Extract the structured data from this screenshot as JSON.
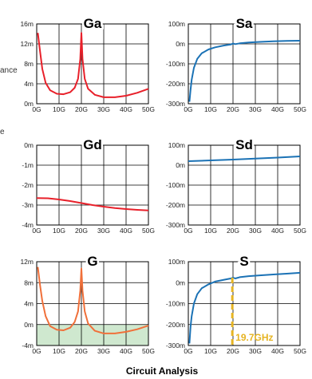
{
  "caption": "Circuit Analysis",
  "side_labels": [
    "ance",
    "e"
  ],
  "colors": {
    "red": "#e8202a",
    "blue": "#1b72b5",
    "orange": "#f0703a",
    "green_band": "#cfe8cf",
    "marker": "#e6b422"
  },
  "chart_data": [
    {
      "id": "Ga",
      "type": "line",
      "title": "Ga",
      "color": "red",
      "xlim": [
        0,
        50
      ],
      "ylim": [
        0,
        16
      ],
      "x_ticks": [
        "0G",
        "10G",
        "20G",
        "30G",
        "40G",
        "50G"
      ],
      "y_ticks": [
        {
          "v": 0,
          "label": "0m"
        },
        {
          "v": 4,
          "label": "4m"
        },
        {
          "v": 8,
          "label": "8m"
        },
        {
          "v": 12,
          "label": "12m"
        },
        {
          "v": 16,
          "label": "16m"
        }
      ],
      "series": [
        {
          "points": [
            [
              0.5,
              14.2
            ],
            [
              1.5,
              10.5
            ],
            [
              2.5,
              7
            ],
            [
              4,
              4.2
            ],
            [
              6,
              2.7
            ],
            [
              9,
              2.0
            ],
            [
              12,
              1.9
            ],
            [
              15,
              2.3
            ],
            [
              17,
              3.2
            ],
            [
              18.5,
              5
            ],
            [
              19.5,
              9
            ],
            [
              20,
              14.2
            ],
            [
              20.5,
              9
            ],
            [
              21.5,
              5
            ],
            [
              23,
              3
            ],
            [
              26,
              1.8
            ],
            [
              30,
              1.3
            ],
            [
              35,
              1.3
            ],
            [
              40,
              1.6
            ],
            [
              45,
              2.2
            ],
            [
              50,
              3.0
            ]
          ]
        }
      ]
    },
    {
      "id": "Sa",
      "type": "line",
      "title": "Sa",
      "color": "blue",
      "xlim": [
        0,
        50
      ],
      "ylim": [
        -300,
        100
      ],
      "x_ticks": [
        "0G",
        "10G",
        "20G",
        "30G",
        "40G",
        "50G"
      ],
      "y_ticks": [
        {
          "v": -300,
          "label": "-300m"
        },
        {
          "v": -200,
          "label": "-200m"
        },
        {
          "v": -100,
          "label": "-100m"
        },
        {
          "v": 0,
          "label": "0m"
        },
        {
          "v": 100,
          "label": "100m"
        }
      ],
      "series": [
        {
          "points": [
            [
              0.5,
              -290
            ],
            [
              1,
              -230
            ],
            [
              1.5,
              -180
            ],
            [
              2.5,
              -120
            ],
            [
              4,
              -75
            ],
            [
              6,
              -47
            ],
            [
              9,
              -28
            ],
            [
              12,
              -17
            ],
            [
              16,
              -8
            ],
            [
              19,
              -3
            ],
            [
              20,
              2
            ],
            [
              21,
              -1
            ],
            [
              23,
              3
            ],
            [
              27,
              7
            ],
            [
              32,
              10
            ],
            [
              38,
              13
            ],
            [
              44,
              15
            ],
            [
              50,
              16
            ]
          ]
        }
      ]
    },
    {
      "id": "Gd",
      "type": "line",
      "title": "Gd",
      "color": "red",
      "xlim": [
        0,
        50
      ],
      "ylim": [
        -4,
        0
      ],
      "x_ticks": [
        "0G",
        "10G",
        "20G",
        "30G",
        "40G",
        "50G"
      ],
      "y_ticks": [
        {
          "v": -4,
          "label": "-4m"
        },
        {
          "v": -3,
          "label": "-3m"
        },
        {
          "v": -2,
          "label": "-2m"
        },
        {
          "v": -1,
          "label": "-1m"
        },
        {
          "v": 0,
          "label": "0m"
        }
      ],
      "series": [
        {
          "points": [
            [
              0,
              -2.65
            ],
            [
              5,
              -2.66
            ],
            [
              10,
              -2.72
            ],
            [
              15,
              -2.8
            ],
            [
              20,
              -2.9
            ],
            [
              25,
              -3.0
            ],
            [
              30,
              -3.08
            ],
            [
              35,
              -3.15
            ],
            [
              40,
              -3.2
            ],
            [
              45,
              -3.24
            ],
            [
              50,
              -3.27
            ]
          ]
        }
      ]
    },
    {
      "id": "Sd",
      "type": "line",
      "title": "Sd",
      "color": "blue",
      "xlim": [
        0,
        50
      ],
      "ylim": [
        -300,
        100
      ],
      "x_ticks": [
        "0G",
        "10G",
        "20G",
        "30G",
        "40G",
        "50G"
      ],
      "y_ticks": [
        {
          "v": -300,
          "label": "-300m"
        },
        {
          "v": -200,
          "label": "-200m"
        },
        {
          "v": -100,
          "label": "-100m"
        },
        {
          "v": 0,
          "label": "0m"
        },
        {
          "v": 100,
          "label": "100m"
        }
      ],
      "series": [
        {
          "points": [
            [
              0,
              20
            ],
            [
              10,
              24
            ],
            [
              20,
              28
            ],
            [
              30,
              33
            ],
            [
              40,
              38
            ],
            [
              50,
              44
            ]
          ]
        }
      ]
    },
    {
      "id": "G",
      "type": "line",
      "title": "G",
      "color": "orange",
      "xlim": [
        0,
        50
      ],
      "ylim": [
        -4,
        12
      ],
      "shaded_band": [
        -4,
        0
      ],
      "x_ticks": [
        "0G",
        "10G",
        "20G",
        "30G",
        "40G",
        "50G"
      ],
      "y_ticks": [
        {
          "v": -4,
          "label": "-4m"
        },
        {
          "v": 0,
          "label": "0m"
        },
        {
          "v": 4,
          "label": "4m"
        },
        {
          "v": 8,
          "label": "8m"
        },
        {
          "v": 12,
          "label": "12m"
        }
      ],
      "series": [
        {
          "points": [
            [
              0.5,
              11
            ],
            [
              1.5,
              7.5
            ],
            [
              2.5,
              4.5
            ],
            [
              4,
              1.6
            ],
            [
              6,
              -0.3
            ],
            [
              9,
              -1.0
            ],
            [
              12,
              -1.1
            ],
            [
              15,
              -0.6
            ],
            [
              17,
              0.5
            ],
            [
              18.5,
              2.5
            ],
            [
              19.5,
              6.5
            ],
            [
              20,
              10.7
            ],
            [
              20.5,
              6.5
            ],
            [
              21.5,
              2.5
            ],
            [
              23,
              0.2
            ],
            [
              26,
              -1.2
            ],
            [
              30,
              -1.7
            ],
            [
              35,
              -1.7
            ],
            [
              40,
              -1.4
            ],
            [
              45,
              -0.9
            ],
            [
              50,
              -0.2
            ]
          ]
        }
      ]
    },
    {
      "id": "S",
      "type": "line",
      "title": "S",
      "color": "blue",
      "xlim": [
        0,
        50
      ],
      "ylim": [
        -300,
        100
      ],
      "x_ticks": [
        "0G",
        "10G",
        "20G",
        "30G",
        "40G",
        "50G"
      ],
      "y_ticks": [
        {
          "v": -300,
          "label": "-300m"
        },
        {
          "v": -200,
          "label": "-200m"
        },
        {
          "v": -100,
          "label": "-100m"
        },
        {
          "v": 0,
          "label": "0m"
        },
        {
          "v": 100,
          "label": "100m"
        }
      ],
      "marker": {
        "x": 19.7,
        "label": "19.7GHz"
      },
      "series": [
        {
          "points": [
            [
              0.5,
              -290
            ],
            [
              1,
              -210
            ],
            [
              1.5,
              -160
            ],
            [
              2.5,
              -100
            ],
            [
              4,
              -55
            ],
            [
              6,
              -27
            ],
            [
              9,
              -8
            ],
            [
              12,
              5
            ],
            [
              16,
              14
            ],
            [
              19,
              20
            ],
            [
              20,
              24
            ],
            [
              21,
              20
            ],
            [
              23,
              26
            ],
            [
              27,
              31
            ],
            [
              32,
              35
            ],
            [
              38,
              39
            ],
            [
              44,
              43
            ],
            [
              50,
              47
            ]
          ]
        }
      ]
    }
  ]
}
